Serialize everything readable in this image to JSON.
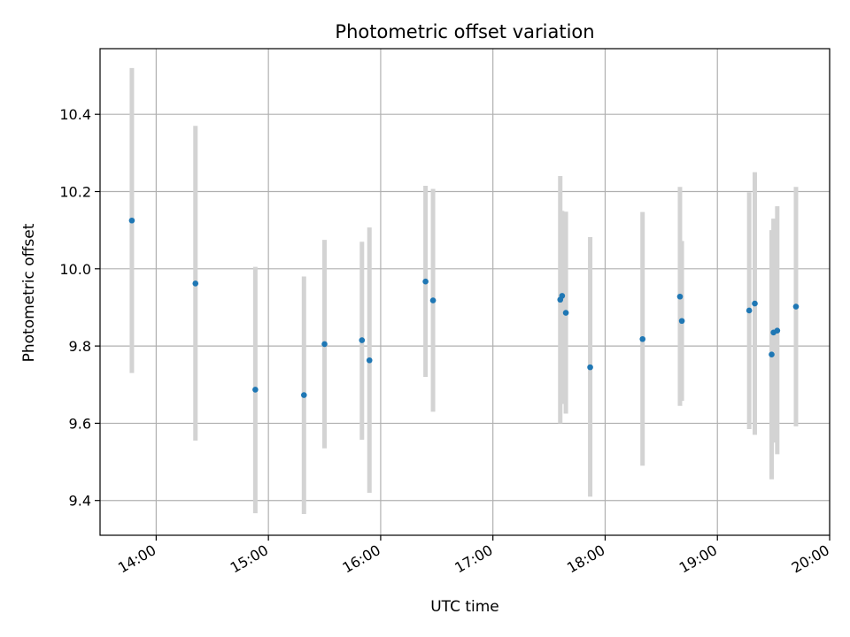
{
  "chart_data": {
    "type": "scatter",
    "title": "Photometric offset variation",
    "xlabel": "UTC time",
    "ylabel": "Photometric offset",
    "x_axis_kind": "time",
    "xlim": [
      "13:30",
      "20:00"
    ],
    "ylim": [
      9.31,
      10.57
    ],
    "x_ticks": [
      "14:00",
      "15:00",
      "16:00",
      "17:00",
      "18:00",
      "19:00",
      "20:00"
    ],
    "y_ticks": [
      9.4,
      9.6,
      9.8,
      10.0,
      10.2,
      10.4
    ],
    "grid": true,
    "legend": "none",
    "colors": {
      "points": "#1f77b4",
      "errorbars": "#d3d3d3",
      "grid": "#b0b0b0"
    },
    "points": [
      {
        "x": "13:47",
        "y": 10.125,
        "ylow": 9.73,
        "yhigh": 10.52
      },
      {
        "x": "14:21",
        "y": 9.962,
        "ylow": 9.555,
        "yhigh": 10.37
      },
      {
        "x": "14:53",
        "y": 9.687,
        "ylow": 9.367,
        "yhigh": 10.005
      },
      {
        "x": "15:19",
        "y": 9.673,
        "ylow": 9.365,
        "yhigh": 9.98
      },
      {
        "x": "15:30",
        "y": 9.805,
        "ylow": 9.535,
        "yhigh": 10.075
      },
      {
        "x": "15:50",
        "y": 9.815,
        "ylow": 9.557,
        "yhigh": 10.07
      },
      {
        "x": "15:54",
        "y": 9.763,
        "ylow": 9.42,
        "yhigh": 10.107
      },
      {
        "x": "16:24",
        "y": 9.967,
        "ylow": 9.72,
        "yhigh": 10.215
      },
      {
        "x": "16:28",
        "y": 9.918,
        "ylow": 9.63,
        "yhigh": 10.207
      },
      {
        "x": "17:36",
        "y": 9.92,
        "ylow": 9.6,
        "yhigh": 10.24
      },
      {
        "x": "17:37",
        "y": 9.93,
        "ylow": 9.65,
        "yhigh": 10.15
      },
      {
        "x": "17:39",
        "y": 9.886,
        "ylow": 9.625,
        "yhigh": 10.148
      },
      {
        "x": "17:52",
        "y": 9.745,
        "ylow": 9.41,
        "yhigh": 10.082
      },
      {
        "x": "18:20",
        "y": 9.818,
        "ylow": 9.49,
        "yhigh": 10.147
      },
      {
        "x": "18:40",
        "y": 9.928,
        "ylow": 9.645,
        "yhigh": 10.212
      },
      {
        "x": "18:41",
        "y": 9.865,
        "ylow": 9.658,
        "yhigh": 10.072
      },
      {
        "x": "19:17",
        "y": 9.892,
        "ylow": 9.585,
        "yhigh": 10.198
      },
      {
        "x": "19:20",
        "y": 9.91,
        "ylow": 9.57,
        "yhigh": 10.25
      },
      {
        "x": "19:29",
        "y": 9.778,
        "ylow": 9.455,
        "yhigh": 10.1
      },
      {
        "x": "19:30",
        "y": 9.835,
        "ylow": 9.55,
        "yhigh": 10.13
      },
      {
        "x": "19:32",
        "y": 9.84,
        "ylow": 9.52,
        "yhigh": 10.162
      },
      {
        "x": "19:42",
        "y": 9.902,
        "ylow": 9.592,
        "yhigh": 10.212
      }
    ]
  }
}
